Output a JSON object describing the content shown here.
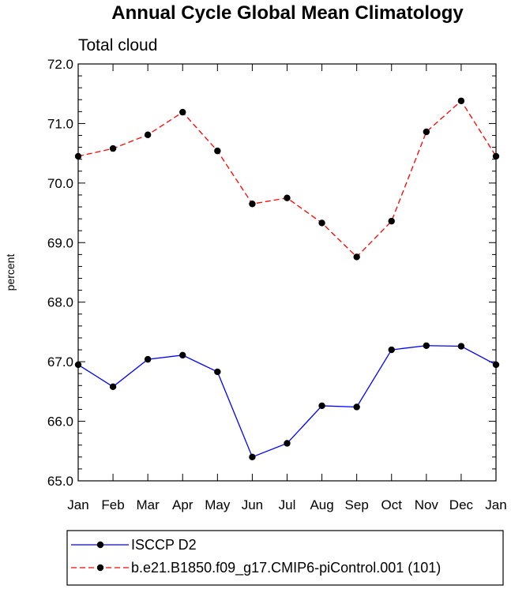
{
  "chart_data": {
    "type": "line",
    "title": "Annual Cycle Global Mean Climatology",
    "subtitle": "Total cloud",
    "ylabel": "percent",
    "xlabel": "",
    "ylim": [
      65.0,
      72.0
    ],
    "y_major_ticks": [
      65.0,
      66.0,
      67.0,
      68.0,
      69.0,
      70.0,
      71.0,
      72.0
    ],
    "y_minor_step": 0.2,
    "categories": [
      "Jan",
      "Feb",
      "Mar",
      "Apr",
      "May",
      "Jun",
      "Jul",
      "Aug",
      "Sep",
      "Oct",
      "Nov",
      "Dec",
      "Jan"
    ],
    "grid": false,
    "legend_position": "bottom",
    "series": [
      {
        "name": "ISCCP D2",
        "color": "#0000ff",
        "line_style": "solid",
        "marker": "filled-circle",
        "values": [
          66.95,
          66.58,
          67.04,
          67.11,
          66.83,
          65.4,
          65.63,
          66.26,
          66.24,
          67.2,
          67.27,
          67.26,
          66.95
        ]
      },
      {
        "name": "b.e21.B1850.f09_g17.CMIP6-piControl.001 (101)",
        "color": "#ff0000",
        "line_style": "dashed",
        "marker": "filled-circle",
        "values": [
          70.45,
          70.58,
          70.81,
          71.19,
          70.54,
          69.65,
          69.75,
          69.33,
          68.76,
          69.36,
          70.86,
          71.38,
          70.45
        ]
      }
    ]
  }
}
